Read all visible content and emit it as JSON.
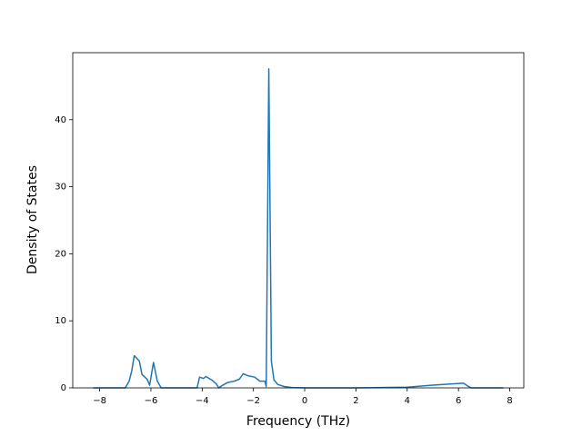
{
  "chart_data": {
    "type": "line",
    "xlabel": "Frequency (THz)",
    "ylabel": "Density of States",
    "x": [
      -8.25,
      -7.0,
      -6.85,
      -6.75,
      -6.65,
      -6.45,
      -6.35,
      -6.15,
      -6.05,
      -5.9,
      -5.75,
      -5.6,
      -4.2,
      -4.1,
      -3.95,
      -3.85,
      -3.6,
      -3.45,
      -3.35,
      -3.2,
      -3.0,
      -2.75,
      -2.55,
      -2.4,
      -2.2,
      -1.95,
      -1.75,
      -1.55,
      -1.5,
      -1.4,
      -1.3,
      -1.2,
      -1.05,
      -0.8,
      -0.5,
      0,
      2,
      4,
      5,
      6.2,
      6.35,
      6.5,
      7.75
    ],
    "values": [
      0,
      0,
      1.0,
      2.5,
      4.8,
      4.0,
      2.0,
      1.3,
      0.4,
      3.8,
      1.0,
      0,
      0,
      1.6,
      1.4,
      1.7,
      1.1,
      0.6,
      0,
      0.4,
      0.8,
      1.0,
      1.3,
      2.1,
      1.8,
      1.6,
      1.0,
      1.0,
      0.2,
      47.6,
      4.0,
      1.2,
      0.5,
      0.2,
      0.05,
      0,
      0,
      0.1,
      0.4,
      0.7,
      0.3,
      0,
      0
    ],
    "color": "#1f77b4",
    "xlim": [
      -9.05,
      8.55
    ],
    "ylim": [
      0,
      50
    ],
    "xticks": [
      {
        "value": -8,
        "label": "−8"
      },
      {
        "value": -6,
        "label": "−6"
      },
      {
        "value": -4,
        "label": "−4"
      },
      {
        "value": -2,
        "label": "−2"
      },
      0,
      2,
      4,
      6,
      8
    ],
    "yticks": [
      0,
      10,
      20,
      30,
      40
    ]
  }
}
